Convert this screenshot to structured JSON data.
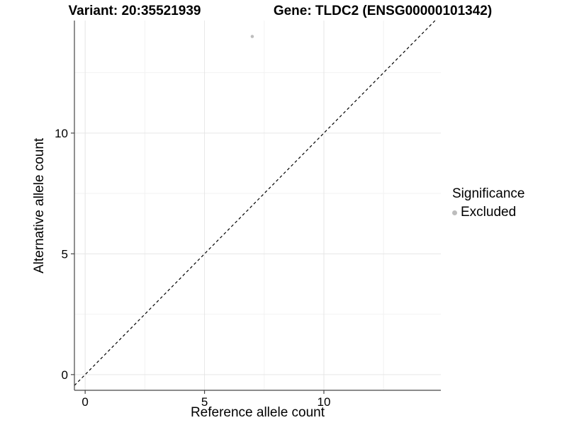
{
  "titles": {
    "variant": "Variant: 20:35521939",
    "gene": "Gene: TLDC2 (ENSG00000101342)"
  },
  "axes": {
    "x": {
      "label": "Reference allele count"
    },
    "y": {
      "label": "Alternative allele count"
    }
  },
  "legend": {
    "title": "Significance",
    "items": [
      {
        "label": "Excluded",
        "color": "#bdbdbd"
      }
    ]
  },
  "chart_data": {
    "type": "scatter",
    "title": "Variant: 20:35521939    Gene: TLDC2 (ENSG00000101342)",
    "xlabel": "Reference allele count",
    "ylabel": "Alternative allele count",
    "series": [
      {
        "name": "Excluded",
        "color": "#bdbdbd",
        "points": [
          {
            "x": 7,
            "y": 14
          }
        ]
      }
    ],
    "reference_line": {
      "type": "identity y=x",
      "style": "dashed",
      "color": "#000000"
    },
    "xlim": [
      -0.45,
      14.9
    ],
    "ylim": [
      -0.65,
      14.66
    ],
    "x_ticks": [
      0,
      5,
      10
    ],
    "y_ticks": [
      0,
      5,
      10
    ],
    "x_minor_ticks": [
      2.5,
      7.5,
      12.5
    ],
    "y_minor_ticks": [
      2.5,
      7.5,
      12.5
    ],
    "grid": true,
    "legend_position": "right",
    "point_radius_px": 2.3,
    "colors": {
      "grid_major": "#e6e6e6",
      "grid_minor": "#f2f2f2",
      "axis_line": "#464646",
      "tick_mark": "#464646",
      "point": "#bdbdbd",
      "background": "#ffffff"
    }
  }
}
